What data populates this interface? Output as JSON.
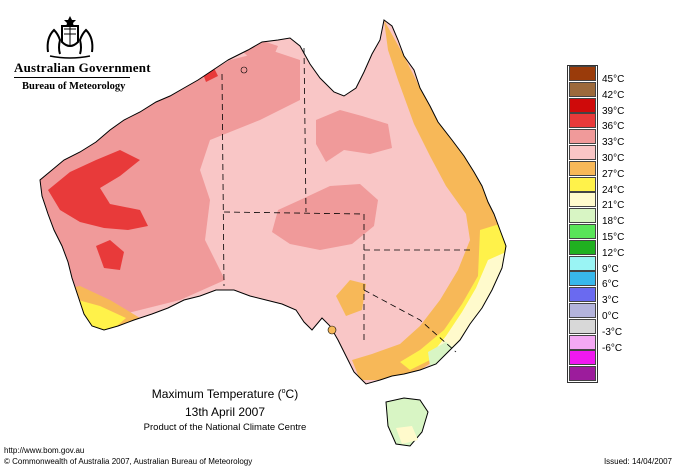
{
  "header": {
    "agency_name": "Australian Government",
    "bureau": "Bureau of Meteorology"
  },
  "map": {
    "title_text": "Maximum Temperature (",
    "title_unit": "o",
    "title_suffix": "C)",
    "date": "13th April 2007",
    "product": "Product of the National Climate Centre"
  },
  "legend": {
    "items": [
      {
        "label": "45°C",
        "color": "#9a3b0a"
      },
      {
        "label": "42°C",
        "color": "#9c6a3c"
      },
      {
        "label": "39°C",
        "color": "#cf0a0a"
      },
      {
        "label": "36°C",
        "color": "#e83a3a"
      },
      {
        "label": "33°C",
        "color": "#f09a9a"
      },
      {
        "label": "30°C",
        "color": "#f9c6c6"
      },
      {
        "label": "27°C",
        "color": "#f7b858"
      },
      {
        "label": "24°C",
        "color": "#fff24a"
      },
      {
        "label": "21°C",
        "color": "#fffacc"
      },
      {
        "label": "18°C",
        "color": "#d8f5c4"
      },
      {
        "label": "15°C",
        "color": "#58e458"
      },
      {
        "label": "12°C",
        "color": "#20b020"
      },
      {
        "label": "9°C",
        "color": "#9af4f4"
      },
      {
        "label": "6°C",
        "color": "#38b8ec"
      },
      {
        "label": "3°C",
        "color": "#6a6af0"
      },
      {
        "label": "0°C",
        "color": "#b4b4dc"
      },
      {
        "label": "-3°C",
        "color": "#d8d8d8"
      },
      {
        "label": "-6°C",
        "color": "#f4a8f4"
      },
      {
        "label": "",
        "color": "#f018f0"
      },
      {
        "label": "",
        "color": "#9c1c9c"
      }
    ]
  },
  "footer": {
    "url": "http://www.bom.gov.au",
    "copyright": "© Commonwealth of Australia 2007, Australian Bureau of Meteorology",
    "issued": "Issued: 14/04/2007"
  },
  "colors": {
    "t24": "#fff24a",
    "t27": "#f7b858",
    "t30": "#f9c6c6",
    "t33": "#f09a9a",
    "t36": "#e83a3a",
    "t21": "#fffacc",
    "t18": "#d8f5c4"
  }
}
